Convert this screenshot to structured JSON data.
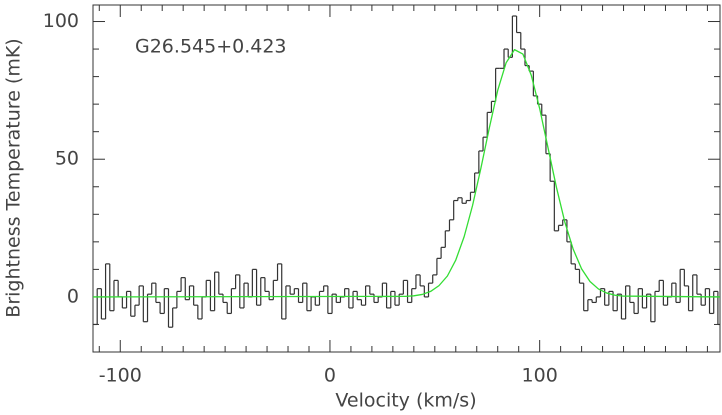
{
  "chart_data": {
    "type": "step",
    "annotation": "G26.545+0.423",
    "x_label": "Velocity (km/s)",
    "y_label": "Brightness Temperature (mK)",
    "xlim": [
      -113,
      186
    ],
    "ylim": [
      -20,
      106
    ],
    "xticks": [
      -100,
      0,
      100
    ],
    "yticks": [
      0,
      50,
      100
    ],
    "xminorticks": [
      -110,
      -90,
      -80,
      -70,
      -60,
      -50,
      -40,
      -30,
      -20,
      -10,
      10,
      20,
      30,
      40,
      50,
      60,
      70,
      80,
      90,
      110,
      120,
      130,
      140,
      150,
      160,
      170,
      180
    ],
    "yminorticks": [
      -10,
      10,
      20,
      30,
      40,
      60,
      70,
      80,
      90
    ],
    "channel_width": 2,
    "series": [
      {
        "name": "spectrum",
        "color": "#333333",
        "x": [
          -112,
          -110,
          -108,
          -106,
          -104,
          -102,
          -100,
          -98,
          -96,
          -94,
          -92,
          -90,
          -88,
          -86,
          -84,
          -82,
          -80,
          -78,
          -76,
          -74,
          -72,
          -70,
          -68,
          -66,
          -64,
          -62,
          -60,
          -58,
          -56,
          -54,
          -52,
          -50,
          -48,
          -46,
          -44,
          -42,
          -40,
          -38,
          -36,
          -34,
          -32,
          -30,
          -28,
          -26,
          -24,
          -22,
          -20,
          -18,
          -16,
          -14,
          -12,
          -10,
          -8,
          -6,
          -4,
          -2,
          0,
          2,
          4,
          6,
          8,
          10,
          12,
          14,
          16,
          18,
          20,
          22,
          24,
          26,
          28,
          30,
          32,
          34,
          36,
          38,
          40,
          42,
          44,
          46,
          48,
          50,
          52,
          54,
          56,
          58,
          60,
          62,
          64,
          66,
          68,
          70,
          72,
          74,
          76,
          78,
          80,
          82,
          84,
          86,
          88,
          90,
          92,
          94,
          96,
          98,
          100,
          102,
          104,
          106,
          108,
          110,
          112,
          114,
          116,
          118,
          120,
          122,
          124,
          126,
          128,
          130,
          132,
          134,
          136,
          138,
          140,
          142,
          144,
          146,
          148,
          150,
          152,
          154,
          156,
          158,
          160,
          162,
          164,
          166,
          168,
          170,
          172,
          174,
          176,
          178,
          180,
          182,
          184,
          186
        ],
        "values": [
          -10,
          3,
          -8,
          12,
          -5,
          6,
          0,
          -4,
          2,
          -7,
          -3,
          4,
          -9,
          1,
          5,
          -2,
          -6,
          3,
          -11,
          -4,
          2,
          7,
          -1,
          4,
          -3,
          -8,
          0,
          6,
          -5,
          9,
          1,
          -2,
          -6,
          3,
          8,
          -4,
          5,
          0,
          10,
          -3,
          7,
          2,
          -1,
          6,
          12,
          -8,
          4,
          1,
          3,
          -2,
          5,
          -5,
          0,
          -3,
          2,
          4,
          -6,
          1,
          -2,
          0,
          3,
          -4,
          2,
          -1,
          -3,
          4,
          1,
          -2,
          0,
          5,
          -4,
          2,
          -3,
          1,
          6,
          -2,
          3,
          8,
          4,
          0,
          5,
          8,
          14,
          18,
          24,
          28,
          35,
          36,
          34,
          35,
          38,
          45,
          53,
          58,
          67,
          71,
          83,
          83,
          90,
          87,
          102,
          96,
          90,
          84,
          82,
          73,
          70,
          66,
          52,
          42,
          24,
          26,
          28,
          20,
          12,
          10,
          5,
          -5,
          -1,
          -2,
          0,
          3,
          -3,
          2,
          -5,
          1,
          -8,
          4,
          -2,
          -6,
          3,
          -4,
          1,
          -9,
          2,
          6,
          -3,
          0,
          5,
          -2,
          10,
          4,
          -5,
          8,
          1,
          -3,
          3,
          -6,
          2,
          -10
        ]
      },
      {
        "name": "fit",
        "color": "#33dd33",
        "x": [
          -113,
          36,
          40,
          44,
          48,
          52,
          56,
          60,
          64,
          68,
          72,
          76,
          80,
          84,
          88,
          92,
          96,
          100,
          104,
          108,
          112,
          116,
          120,
          124,
          128,
          132,
          136,
          140,
          186
        ],
        "values": [
          0,
          0.2,
          0.4,
          0.9,
          2.0,
          4.1,
          7.6,
          13.4,
          21.9,
          33.2,
          46.8,
          61.4,
          75,
          85,
          89.8,
          88.2,
          80.5,
          68.4,
          54.1,
          39.8,
          27.2,
          17.3,
          10.2,
          5.6,
          2.9,
          1.4,
          0.6,
          0.3,
          0
        ]
      }
    ]
  }
}
